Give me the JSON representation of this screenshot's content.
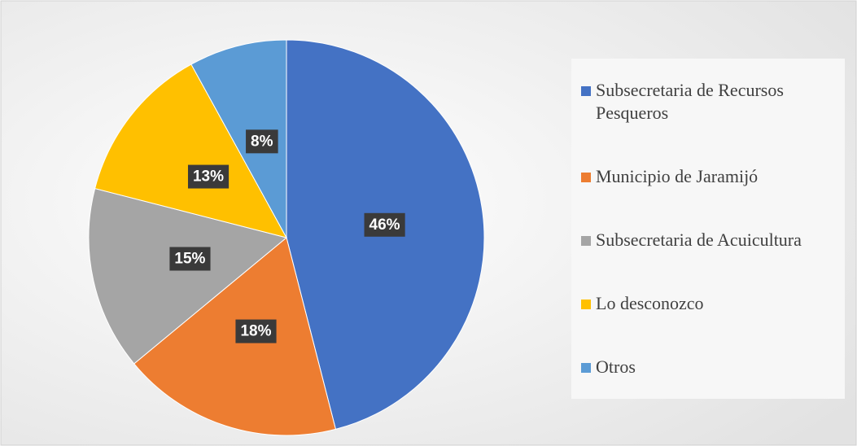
{
  "chart_data": {
    "type": "pie",
    "categories": [
      "Subsecretaria de Recursos Pesqueros",
      "Municipio de Jaramijó",
      "Subsecretaria de Acuicultura",
      "Lo desconozco",
      "Otros"
    ],
    "values": [
      46,
      18,
      15,
      13,
      8
    ],
    "value_labels": [
      "46%",
      "18%",
      "15%",
      "13%",
      "8%"
    ],
    "colors": [
      "#4472c4",
      "#ed7d31",
      "#a5a5a5",
      "#ffc000",
      "#5b9bd5"
    ],
    "legend": "right"
  }
}
